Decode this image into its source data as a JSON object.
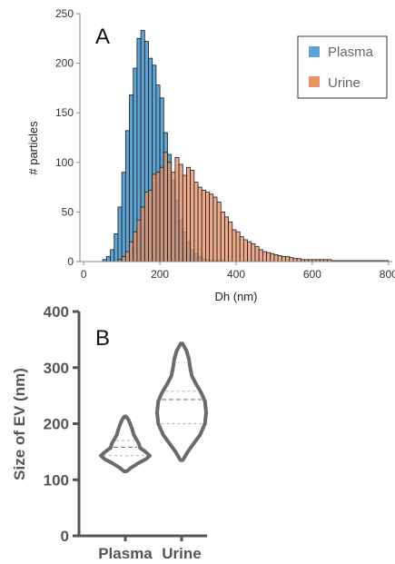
{
  "chart_data": [
    {
      "type": "bar",
      "panel_label": "A",
      "xlabel": "Dh (nm)",
      "ylabel": "# particles",
      "xlim": [
        -10,
        810
      ],
      "ylim": [
        0,
        250
      ],
      "xticks": [
        "0",
        "200",
        "400",
        "600",
        "800"
      ],
      "yticks": [
        "0",
        "50",
        "100",
        "150",
        "200",
        "250"
      ],
      "bin_width": 10,
      "legend_position": "top-right",
      "series": [
        {
          "name": "Plasma",
          "color": "#5ea4d5",
          "bins_start": [
            50,
            60,
            70,
            80,
            90,
            100,
            110,
            120,
            130,
            140,
            150,
            160,
            170,
            180,
            190,
            200,
            210,
            220,
            230,
            240,
            250,
            260,
            270,
            280,
            290,
            300,
            310,
            320,
            330,
            340,
            350,
            360
          ],
          "counts": [
            2,
            5,
            12,
            28,
            55,
            90,
            132,
            168,
            195,
            225,
            233,
            222,
            205,
            198,
            178,
            165,
            130,
            108,
            82,
            62,
            42,
            30,
            20,
            12,
            8,
            5,
            3,
            2,
            1,
            1,
            1,
            1
          ]
        },
        {
          "name": "Urine",
          "color": "#e9926a",
          "bins_start": [
            90,
            100,
            110,
            120,
            130,
            140,
            150,
            160,
            170,
            180,
            190,
            200,
            210,
            220,
            230,
            240,
            250,
            260,
            270,
            280,
            290,
            300,
            310,
            320,
            330,
            340,
            350,
            360,
            370,
            380,
            390,
            400,
            410,
            420,
            430,
            440,
            450,
            460,
            470,
            480,
            490,
            500,
            510,
            520,
            530,
            540,
            550,
            560,
            570,
            580,
            590,
            600,
            610,
            620,
            630,
            640,
            650,
            660,
            670,
            680,
            690,
            700,
            710,
            720,
            730,
            740,
            750,
            760,
            770,
            780,
            790
          ],
          "counts": [
            2,
            5,
            10,
            20,
            30,
            42,
            55,
            70,
            72,
            88,
            90,
            95,
            110,
            100,
            90,
            105,
            98,
            87,
            95,
            92,
            80,
            75,
            72,
            70,
            68,
            65,
            60,
            50,
            45,
            40,
            32,
            30,
            25,
            22,
            20,
            18,
            15,
            12,
            10,
            9,
            8,
            7,
            6,
            5,
            5,
            4,
            3,
            3,
            2,
            2,
            2,
            2,
            2,
            2,
            2,
            2,
            1,
            1,
            1,
            1,
            1,
            1,
            1,
            1,
            1,
            1,
            1,
            1,
            1,
            1,
            1
          ]
        }
      ]
    },
    {
      "type": "violin",
      "panel_label": "B",
      "ylabel": "Size of EV (nm)",
      "ylim": [
        0,
        400
      ],
      "yticks": [
        "0",
        "100",
        "200",
        "300",
        "400"
      ],
      "categories": [
        "Plasma",
        "Urine"
      ],
      "violins": [
        {
          "name": "Plasma",
          "min": 115,
          "max": 213,
          "median": 158,
          "q1": 143,
          "q3": 170,
          "profile": [
            [
              115,
              0.05
            ],
            [
              122,
              0.25
            ],
            [
              130,
              0.55
            ],
            [
              137,
              0.85
            ],
            [
              143,
              1.0
            ],
            [
              150,
              0.82
            ],
            [
              157,
              0.6
            ],
            [
              165,
              0.55
            ],
            [
              172,
              0.45
            ],
            [
              180,
              0.35
            ],
            [
              190,
              0.28
            ],
            [
              200,
              0.2
            ],
            [
              208,
              0.12
            ],
            [
              213,
              0.03
            ]
          ]
        },
        {
          "name": "Urine",
          "min": 135,
          "max": 343,
          "median": 243,
          "q1": 200,
          "q3": 258,
          "profile": [
            [
              135,
              0.05
            ],
            [
              150,
              0.25
            ],
            [
              165,
              0.5
            ],
            [
              180,
              0.75
            ],
            [
              200,
              0.95
            ],
            [
              220,
              1.0
            ],
            [
              240,
              0.95
            ],
            [
              255,
              0.8
            ],
            [
              270,
              0.6
            ],
            [
              285,
              0.42
            ],
            [
              300,
              0.35
            ],
            [
              315,
              0.3
            ],
            [
              330,
              0.2
            ],
            [
              343,
              0.04
            ]
          ]
        }
      ]
    }
  ]
}
